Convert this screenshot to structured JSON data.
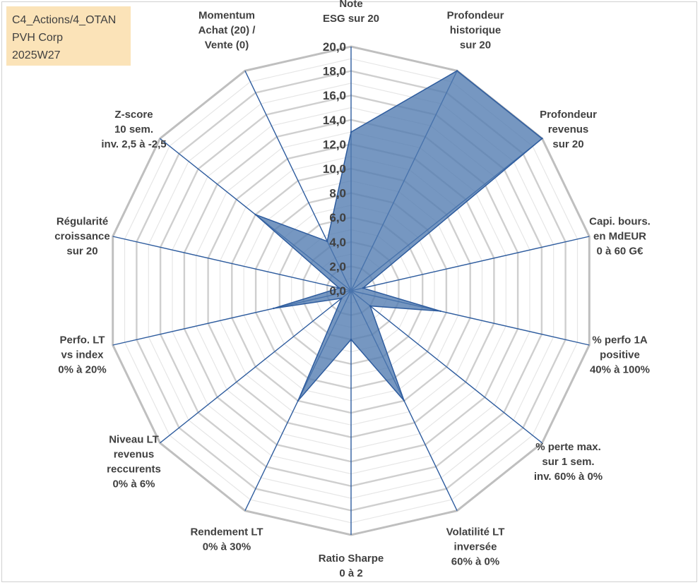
{
  "header": {
    "line1": "C4_Actions/4_OTAN",
    "line2": "PVH Corp",
    "line3": "2025W27"
  },
  "chart_data": {
    "type": "radar",
    "r_range": [
      0,
      20
    ],
    "r_ticks": [
      "0,0",
      "2,0",
      "4,0",
      "6,0",
      "8,0",
      "10,0",
      "12,0",
      "14,0",
      "16,0",
      "18,0",
      "20,0"
    ],
    "grid": true,
    "axes": [
      {
        "label": [
          "Note",
          "ESG sur 20"
        ],
        "value": 13.0
      },
      {
        "label": [
          "Profondeur",
          "historique",
          "sur 20"
        ],
        "value": 20.0
      },
      {
        "label": [
          "Profondeur",
          "revenus",
          "sur 20"
        ],
        "value": 20.0
      },
      {
        "label": [
          "Capi. bours.",
          "en MdEUR",
          "0 à 60 G€"
        ],
        "value": 1.0
      },
      {
        "label": [
          "% perfo 1A",
          "positive",
          "40% à 100%"
        ],
        "value": 7.5
      },
      {
        "label": [
          "% perte max.",
          "sur 1 sem.",
          "inv. 60% à 0%"
        ],
        "value": 2.0
      },
      {
        "label": [
          "Volatilité LT",
          "inversée",
          "60% à 0%"
        ],
        "value": 10.0
      },
      {
        "label": [
          "Ratio Sharpe",
          "0 à 2"
        ],
        "value": 4.0
      },
      {
        "label": [
          "Rendement LT",
          "0% à 30%"
        ],
        "value": 10.0
      },
      {
        "label": [
          "Niveau LT",
          "revenus",
          "reccurents",
          "0% à 6%"
        ],
        "value": 1.0
      },
      {
        "label": [
          "Perfo. LT",
          "vs index",
          "0% à 20%"
        ],
        "value": 6.5
      },
      {
        "label": [
          "Régularité",
          "croissance",
          "sur 20"
        ],
        "value": 1.0
      },
      {
        "label": [
          "Z-score",
          "10 sem.",
          "inv. 2,5 à -2,5"
        ],
        "value": 10.0
      },
      {
        "label": [
          "Momentum",
          "Achat (20) /",
          "Vente (0)"
        ],
        "value": 4.5
      }
    ],
    "colors": {
      "fill": "#4f7aaf",
      "series_stroke": "#2e5c9e",
      "spoke": "#2e5c9e",
      "grid_outer": "#bfbfbf",
      "grid_inner": "#e6e6e6"
    }
  }
}
